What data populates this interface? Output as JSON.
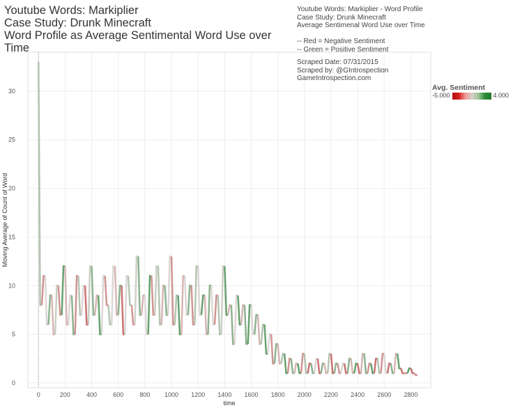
{
  "title_lines": [
    "Youtube Words: Markiplier",
    "Case Study: Drunk Minecraft",
    "Word Profile as Average Sentimental Word Use over Time"
  ],
  "notes": "Youtube Words: Markiplier - Word Profile\nCase Study: Drunk Minecraft\nAverage Sentimenal Word Use over Time\n\n-- Red = Negative Sentiment\n-- Green = Positive Sentiment",
  "scraped": "Scraped Date: 07/31/2015\nScraped by: @GIntrospection\nGameIntrospection.com",
  "legend": {
    "title": "Avg. Sentiment",
    "min": "-5.000",
    "max": "4.000"
  },
  "colors": {
    "negative": "#b30d0d",
    "neutral": "#d6d0cc",
    "positive": "#1e7a2d"
  },
  "chart_data": {
    "type": "line",
    "xlabel": "time",
    "ylabel": "Moving Average of Count of Word",
    "xlim": [
      -80,
      2950
    ],
    "ylim": [
      -0.5,
      34
    ],
    "xticks": [
      0,
      200,
      400,
      600,
      800,
      1000,
      1200,
      1400,
      1600,
      1800,
      2000,
      2200,
      2400,
      2600,
      2800
    ],
    "yticks": [
      0,
      5,
      10,
      15,
      20,
      25,
      30
    ],
    "grid": true,
    "color_by": "Avg. Sentiment",
    "color_range": [
      -5,
      4
    ],
    "points": [
      [
        0,
        33,
        -3
      ],
      [
        25,
        8,
        1
      ],
      [
        50,
        11,
        -2
      ],
      [
        75,
        6,
        0
      ],
      [
        100,
        9,
        2
      ],
      [
        125,
        5,
        -1
      ],
      [
        150,
        10,
        0.5
      ],
      [
        175,
        7,
        -2
      ],
      [
        200,
        12,
        3
      ],
      [
        225,
        6,
        -1
      ],
      [
        250,
        9,
        0
      ],
      [
        275,
        5,
        2
      ],
      [
        300,
        11,
        -2
      ],
      [
        325,
        7,
        1
      ],
      [
        350,
        10,
        0
      ],
      [
        375,
        6,
        -3
      ],
      [
        400,
        12,
        0.5
      ],
      [
        425,
        7,
        2
      ],
      [
        450,
        9,
        -1
      ],
      [
        475,
        5,
        3
      ],
      [
        500,
        11,
        0
      ],
      [
        525,
        8,
        -2
      ],
      [
        550,
        6,
        1
      ],
      [
        575,
        12,
        0
      ],
      [
        600,
        7,
        -1
      ],
      [
        625,
        10,
        2
      ],
      [
        650,
        5,
        -3
      ],
      [
        675,
        11,
        0
      ],
      [
        700,
        8,
        1
      ],
      [
        725,
        6,
        -2
      ],
      [
        750,
        13,
        0.3
      ],
      [
        775,
        7,
        2
      ],
      [
        800,
        9,
        -1
      ],
      [
        825,
        5,
        0
      ],
      [
        850,
        11,
        3
      ],
      [
        875,
        7,
        -2
      ],
      [
        900,
        12,
        0.5
      ],
      [
        925,
        6,
        1
      ],
      [
        950,
        10,
        -1
      ],
      [
        975,
        7,
        2
      ],
      [
        1000,
        13,
        0
      ],
      [
        1025,
        6,
        -2
      ],
      [
        1050,
        9,
        1
      ],
      [
        1075,
        5,
        3
      ],
      [
        1100,
        11,
        -1
      ],
      [
        1125,
        7,
        0
      ],
      [
        1150,
        10,
        2
      ],
      [
        1175,
        6,
        -2
      ],
      [
        1200,
        12,
        1
      ],
      [
        1225,
        7,
        0
      ],
      [
        1250,
        9,
        3
      ],
      [
        1275,
        5,
        -1
      ],
      [
        1300,
        10,
        2
      ],
      [
        1325,
        6,
        0
      ],
      [
        1350,
        9,
        -2
      ],
      [
        1375,
        5,
        1
      ],
      [
        1400,
        12,
        0.4
      ],
      [
        1425,
        7,
        3
      ],
      [
        1450,
        8,
        -1
      ],
      [
        1475,
        4,
        2
      ],
      [
        1500,
        9,
        0
      ],
      [
        1525,
        6,
        3
      ],
      [
        1550,
        8,
        -1
      ],
      [
        1575,
        4,
        2
      ],
      [
        1600,
        8,
        3
      ],
      [
        1625,
        5,
        0
      ],
      [
        1650,
        7,
        2
      ],
      [
        1675,
        4,
        -1
      ],
      [
        1700,
        6,
        1
      ],
      [
        1725,
        3,
        3
      ],
      [
        1750,
        5,
        0
      ],
      [
        1775,
        2,
        -2
      ],
      [
        1800,
        4,
        2
      ],
      [
        1825,
        2,
        -1
      ],
      [
        1850,
        3,
        1
      ],
      [
        1875,
        1,
        3
      ],
      [
        1900,
        2.5,
        -2
      ],
      [
        1925,
        1,
        2
      ],
      [
        1950,
        2,
        -1
      ],
      [
        1975,
        1,
        3
      ],
      [
        2000,
        3,
        -2
      ],
      [
        2025,
        1,
        1
      ],
      [
        2050,
        2,
        -3
      ],
      [
        2075,
        1,
        2
      ],
      [
        2100,
        2.5,
        0
      ],
      [
        2125,
        1,
        -3
      ],
      [
        2150,
        2,
        2
      ],
      [
        2175,
        1,
        -1
      ],
      [
        2200,
        3,
        1
      ],
      [
        2225,
        1,
        -3
      ],
      [
        2250,
        2,
        2
      ],
      [
        2275,
        1,
        -2
      ],
      [
        2300,
        2,
        0
      ],
      [
        2325,
        1,
        -3
      ],
      [
        2350,
        2.5,
        2
      ],
      [
        2375,
        1,
        -1
      ],
      [
        2400,
        2,
        3
      ],
      [
        2425,
        1,
        -3
      ],
      [
        2450,
        3,
        -1
      ],
      [
        2475,
        1,
        2
      ],
      [
        2500,
        2,
        -2
      ],
      [
        2525,
        1,
        3
      ],
      [
        2550,
        2.5,
        -3
      ],
      [
        2575,
        1,
        1
      ],
      [
        2600,
        3,
        -2
      ],
      [
        2625,
        1,
        0
      ],
      [
        2650,
        2,
        -3
      ],
      [
        2675,
        1,
        2
      ],
      [
        2700,
        3,
        -1
      ],
      [
        2725,
        1.5,
        3
      ],
      [
        2750,
        1,
        -3
      ],
      [
        2775,
        1,
        -2
      ],
      [
        2800,
        1.5,
        3
      ],
      [
        2825,
        1,
        -3
      ],
      [
        2850,
        0.8,
        -2
      ]
    ]
  }
}
